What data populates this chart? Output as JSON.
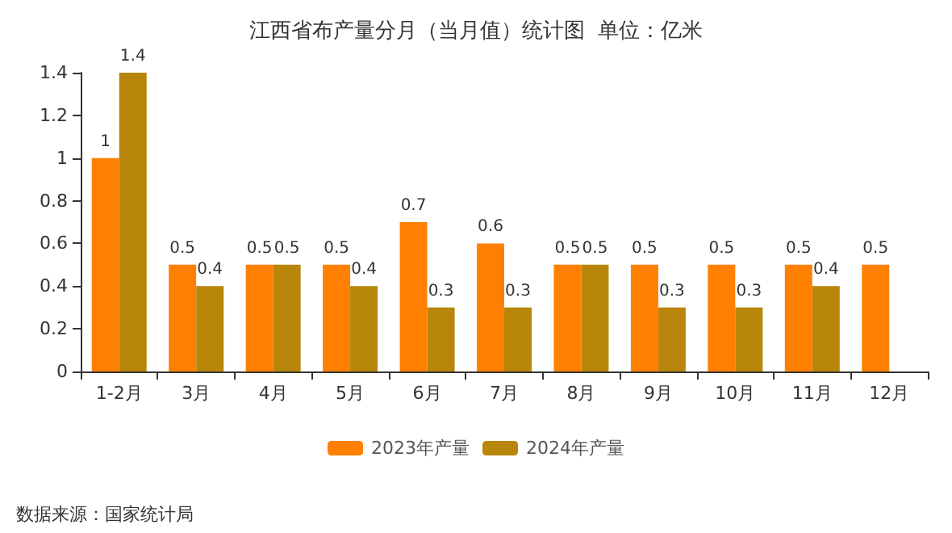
{
  "chart_data": {
    "type": "bar",
    "title": "江西省布产量分月（当月值）统计图  单位：亿米",
    "categories": [
      "1-2月",
      "3月",
      "4月",
      "5月",
      "6月",
      "7月",
      "8月",
      "9月",
      "10月",
      "11月",
      "12月"
    ],
    "series": [
      {
        "name": "2023年产量",
        "color": "#ff8000",
        "values": [
          1,
          0.5,
          0.5,
          0.5,
          0.7,
          0.6,
          0.5,
          0.5,
          0.5,
          0.5,
          0.5
        ]
      },
      {
        "name": "2024年产量",
        "color": "#b8860b",
        "values": [
          1.4,
          0.4,
          0.5,
          0.4,
          0.3,
          0.3,
          0.5,
          0.3,
          0.3,
          0.4,
          null
        ]
      }
    ],
    "ylim": [
      0,
      1.4
    ],
    "yticks": [
      0,
      0.2,
      0.4,
      0.6,
      0.8,
      1,
      1.2,
      1.4
    ],
    "grid": false,
    "legend": "bottom",
    "data_labels": true,
    "annotations": [
      "数据来源：国家统计局"
    ]
  }
}
